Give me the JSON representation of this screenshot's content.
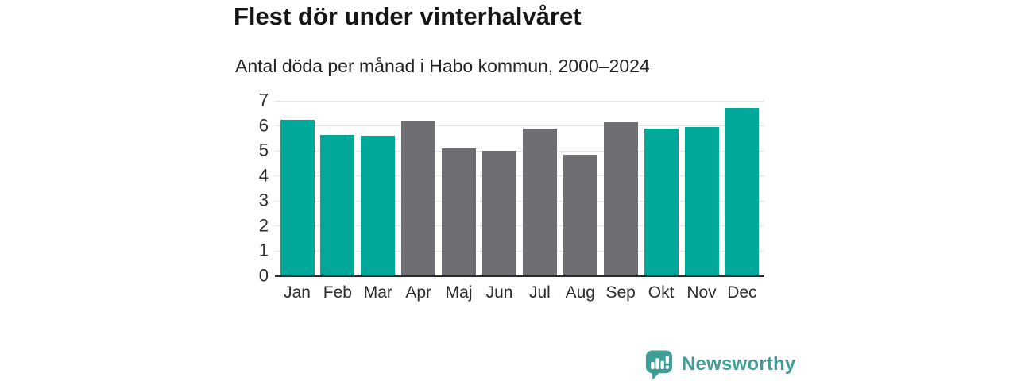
{
  "chart_data": {
    "type": "bar",
    "title": "Flest dör under vinterhalvåret",
    "subtitle": "Antal döda per månad i Habo kommun, 2000–2024",
    "categories": [
      "Jan",
      "Feb",
      "Mar",
      "Apr",
      "Maj",
      "Jun",
      "Jul",
      "Aug",
      "Sep",
      "Okt",
      "Nov",
      "Dec"
    ],
    "values": [
      6.25,
      5.65,
      5.6,
      6.2,
      5.1,
      5.0,
      5.9,
      4.85,
      6.15,
      5.9,
      5.95,
      6.7
    ],
    "bar_groups": [
      "winter",
      "winter",
      "winter",
      "summer",
      "summer",
      "summer",
      "summer",
      "summer",
      "summer",
      "winter",
      "winter",
      "winter"
    ],
    "colors": {
      "winter": "#00a89a",
      "summer": "#6e6e73"
    },
    "xlabel": "",
    "ylabel": "",
    "ylim": [
      0,
      7
    ],
    "yticks": [
      0,
      1,
      2,
      3,
      4,
      5,
      6,
      7
    ],
    "grid": "horizontal",
    "grid_color": "#e4e4e4",
    "axis_color": "#2b2b2b",
    "tick_label_color": "#2d2d2d",
    "legend": "none"
  },
  "branding": {
    "logo_text": "Newsworthy",
    "logo_icon": "bar-chart-speech-bubble-icon",
    "color": "#3f9e98"
  }
}
